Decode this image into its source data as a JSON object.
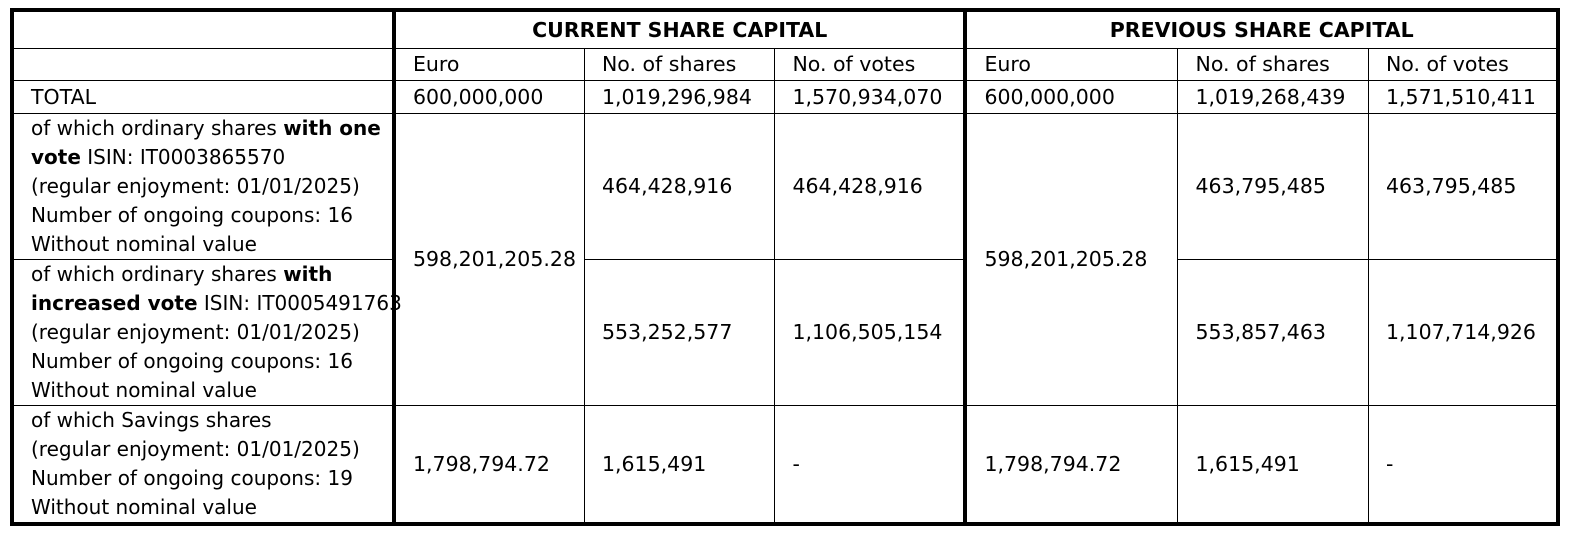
{
  "groups": {
    "current": "CURRENT SHARE CAPITAL",
    "previous": "PREVIOUS SHARE CAPITAL"
  },
  "columns": {
    "euro": "Euro",
    "shares": "No. of shares",
    "votes": "No. of votes"
  },
  "total": {
    "label": "TOTAL",
    "current": {
      "euro": "600,000,000",
      "shares": "1,019,296,984",
      "votes": "1,570,934,070"
    },
    "previous": {
      "euro": "600,000,000",
      "shares": "1,019,268,439",
      "votes": "1,571,510,411"
    }
  },
  "ordinary_euro": {
    "current": "598,201,205.28",
    "previous": "598,201,205.28"
  },
  "one_vote": {
    "l1_a": "of which ordinary shares ",
    "l1_b": "with one",
    "l2_a": "vote",
    "l2_b": " ISIN: IT0003865570",
    "l3": "(regular enjoyment: 01/01/2025)",
    "l4": "Number of ongoing coupons: 16",
    "l5": "Without nominal value",
    "current": {
      "shares": "464,428,916",
      "votes": "464,428,916"
    },
    "previous": {
      "shares": "463,795,485",
      "votes": "463,795,485"
    }
  },
  "increased_vote": {
    "l1_a": "of which ordinary shares ",
    "l1_b": "with",
    "l2_a": "increased vote",
    "l2_b": " ISIN: IT0005491763",
    "l3": "(regular enjoyment: 01/01/2025)",
    "l4": "Number of ongoing coupons: 16",
    "l5": "Without nominal value",
    "current": {
      "shares": "553,252,577",
      "votes": "1,106,505,154"
    },
    "previous": {
      "shares": "553,857,463",
      "votes": "1,107,714,926"
    }
  },
  "savings": {
    "l1": "of which Savings shares",
    "l2": "(regular enjoyment: 01/01/2025)",
    "l3": "Number of ongoing coupons: 19",
    "l4": "Without nominal value",
    "current": {
      "euro": "1,798,794.72",
      "shares": "1,615,491",
      "votes": "-"
    },
    "previous": {
      "euro": "1,798,794.72",
      "shares": "1,615,491",
      "votes": "-"
    }
  }
}
